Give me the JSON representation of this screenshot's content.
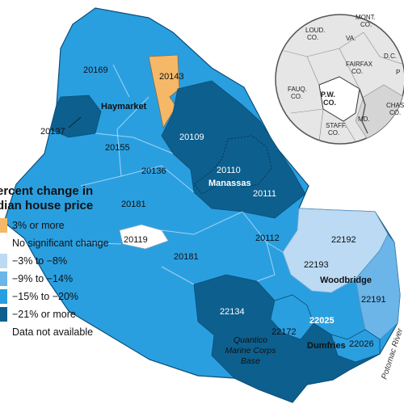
{
  "legend": {
    "title_line1": "ercent change in",
    "title_line2": "dian house price",
    "items": [
      {
        "label": "3% or more",
        "color": "#f4b867"
      },
      {
        "label": "No significant change",
        "color": "#ffffff"
      },
      {
        "label": "−3% to −8%",
        "color": "#bcdaf3"
      },
      {
        "label": "−9% to −14%",
        "color": "#6bb5e8"
      },
      {
        "label": "−15% to −20%",
        "color": "#2a9fe0"
      },
      {
        "label": "−21% or more",
        "color": "#0d5f8e"
      },
      {
        "label": "Data not available",
        "color": "#ffffff"
      }
    ]
  },
  "zip_labels": [
    "20169",
    "20143",
    "20137",
    "20109",
    "20155",
    "20110",
    "20136",
    "20111",
    "20181",
    "20119",
    "20181",
    "20112",
    "22192",
    "22193",
    "22191",
    "22134",
    "22172",
    "22025",
    "22026"
  ],
  "places": {
    "haymarket": "Haymarket",
    "manassas": "Manassas",
    "woodbridge": "Woodbridge",
    "dumfries": "Dumfries"
  },
  "base_label": {
    "line1": "Quantico",
    "line2": "Marine Corps",
    "line3": "Base"
  },
  "river_label": "Potomac River",
  "inset": {
    "labels": {
      "loud": [
        "LOUD.",
        "CO."
      ],
      "mont": [
        "MONT.",
        "CO."
      ],
      "va": "VA.",
      "fairfax": [
        "FAIRFAX",
        "CO."
      ],
      "dc": "D.C.",
      "pw": [
        "P.W.",
        "CO."
      ],
      "fauq": [
        "FAUQ.",
        "CO."
      ],
      "md": "MD.",
      "staff": [
        "STAFF.",
        "CO."
      ],
      "chas": [
        "CHAS",
        "CO."
      ],
      "p": "P"
    }
  }
}
